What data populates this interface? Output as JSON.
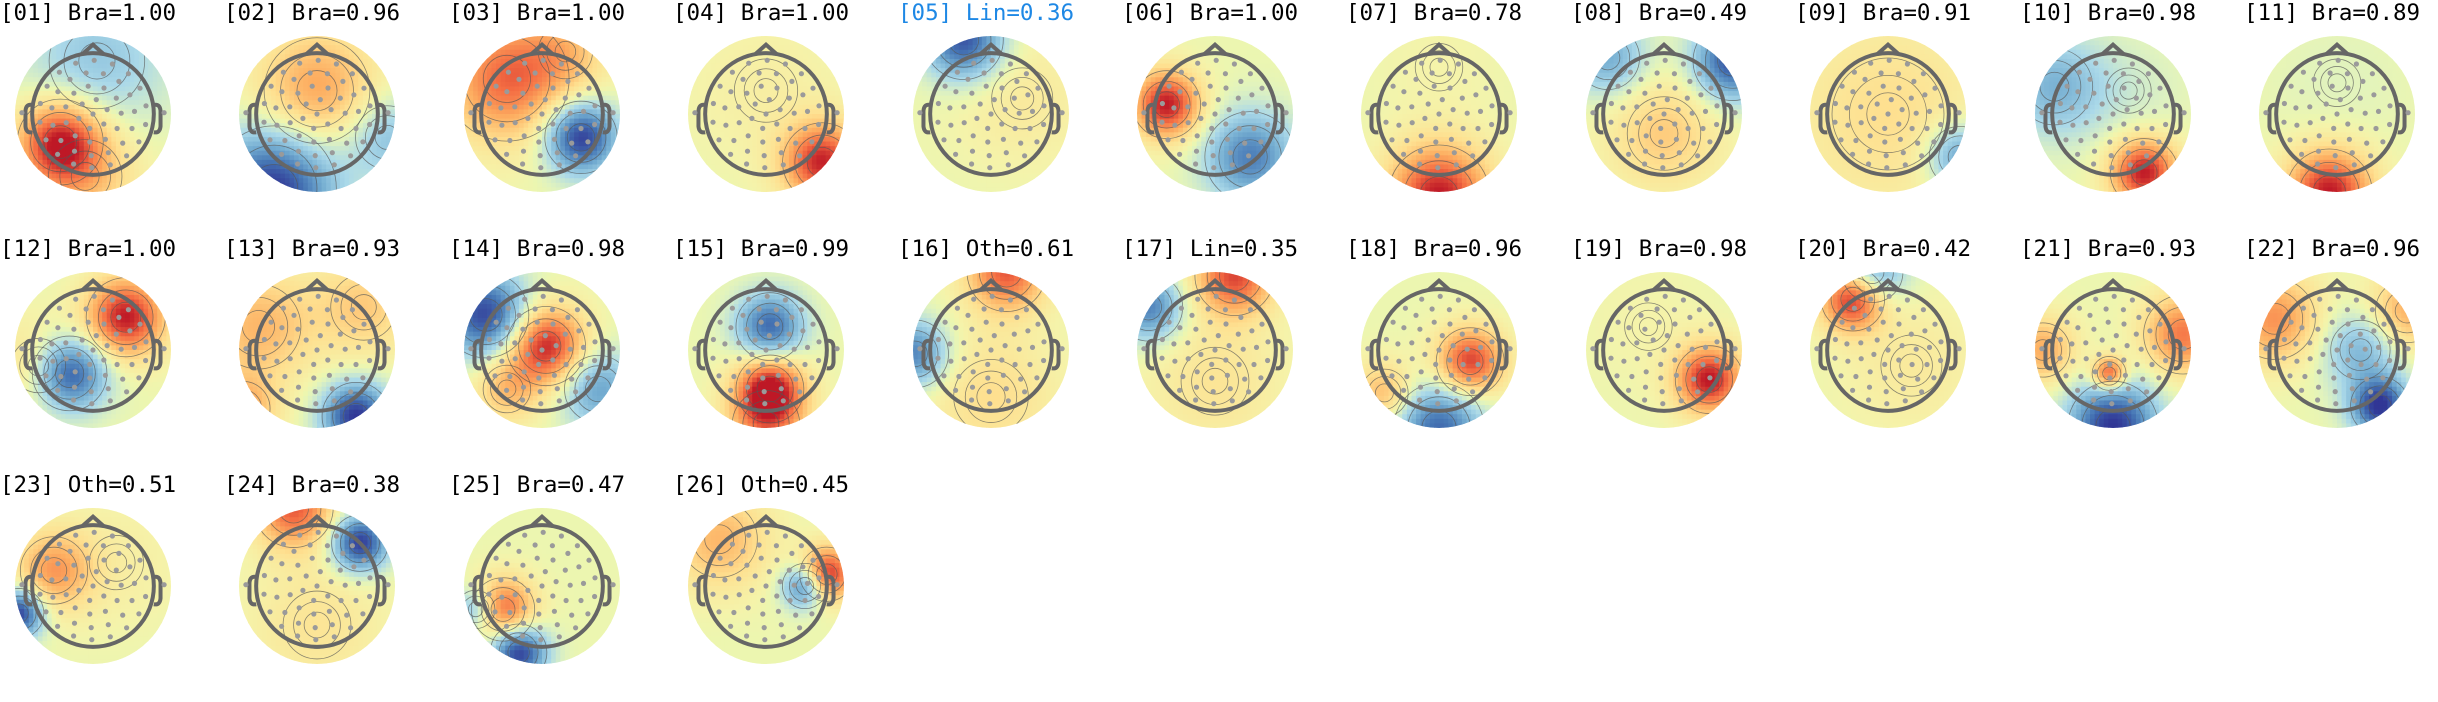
{
  "components": [
    {
      "label": "[01] Bra=1.00",
      "blobs": [
        [
          -0.42,
          -0.36,
          0.95,
          0.38
        ],
        [
          0.05,
          0.68,
          -0.35,
          0.65
        ],
        [
          -0.1,
          -0.8,
          0.35,
          0.5
        ]
      ]
    },
    {
      "label": "[02] Bra=0.96",
      "blobs": [
        [
          0.0,
          0.3,
          0.55,
          0.55
        ],
        [
          -0.55,
          -0.95,
          -1.0,
          0.55
        ],
        [
          0.9,
          -0.3,
          -0.4,
          0.4
        ]
      ]
    },
    {
      "label": "[03] Bra=1.00",
      "blobs": [
        [
          -0.45,
          0.45,
          0.75,
          0.55
        ],
        [
          0.5,
          -0.3,
          -1.0,
          0.32
        ],
        [
          0.3,
          0.8,
          0.3,
          0.4
        ]
      ]
    },
    {
      "label": "[04] Bra=1.00",
      "blobs": [
        [
          0.72,
          -0.62,
          0.95,
          0.35
        ],
        [
          0.0,
          0.3,
          0.1,
          0.7
        ]
      ]
    },
    {
      "label": "[05] Lin=0.36",
      "highlight": true,
      "blobs": [
        [
          -0.35,
          0.95,
          -0.9,
          0.35
        ],
        [
          0.4,
          0.2,
          0.15,
          0.6
        ]
      ]
    },
    {
      "label": "[06] Bra=1.00",
      "blobs": [
        [
          -0.62,
          0.12,
          1.0,
          0.3
        ],
        [
          0.45,
          -0.55,
          -0.7,
          0.4
        ]
      ]
    },
    {
      "label": "[07] Bra=0.78",
      "blobs": [
        [
          0.0,
          -1.05,
          1.0,
          0.45
        ],
        [
          0.0,
          0.6,
          0.05,
          0.6
        ]
      ]
    },
    {
      "label": "[08] Bra=0.49",
      "blobs": [
        [
          0.88,
          0.68,
          -0.9,
          0.35
        ],
        [
          -0.72,
          0.72,
          -0.5,
          0.35
        ],
        [
          0.0,
          -0.25,
          0.35,
          0.5
        ]
      ]
    },
    {
      "label": "[09] Bra=0.91",
      "blobs": [
        [
          0.0,
          0.0,
          0.25,
          0.9
        ],
        [
          0.92,
          -0.55,
          -0.6,
          0.3
        ]
      ]
    },
    {
      "label": "[10] Bra=0.98",
      "blobs": [
        [
          0.4,
          -0.75,
          1.0,
          0.3
        ],
        [
          -0.75,
          0.35,
          -0.45,
          0.45
        ],
        [
          0.2,
          0.3,
          -0.1,
          0.5
        ]
      ]
    },
    {
      "label": "[11] Bra=0.89",
      "blobs": [
        [
          -0.1,
          -1.0,
          1.0,
          0.38
        ],
        [
          0.0,
          0.4,
          -0.05,
          0.6
        ]
      ]
    },
    {
      "label": "[12] Bra=1.00",
      "blobs": [
        [
          0.42,
          0.42,
          1.0,
          0.35
        ],
        [
          -0.3,
          -0.3,
          -0.95,
          0.33
        ],
        [
          -0.7,
          -0.2,
          0.3,
          0.4
        ]
      ]
    },
    {
      "label": "[13] Bra=0.93",
      "blobs": [
        [
          0.5,
          -0.85,
          -1.0,
          0.3
        ],
        [
          -0.75,
          0.3,
          0.45,
          0.5
        ],
        [
          0.6,
          0.55,
          0.35,
          0.45
        ],
        [
          -0.95,
          -0.75,
          0.5,
          0.3
        ]
      ]
    },
    {
      "label": "[14] Bra=0.98",
      "blobs": [
        [
          0.05,
          0.05,
          1.0,
          0.35
        ],
        [
          -0.72,
          0.45,
          -0.95,
          0.38
        ],
        [
          0.72,
          -0.5,
          -0.55,
          0.35
        ],
        [
          -0.45,
          -0.5,
          0.4,
          0.3
        ]
      ]
    },
    {
      "label": "[15] Bra=0.99",
      "blobs": [
        [
          0.05,
          -0.5,
          1.0,
          0.3
        ],
        [
          0.05,
          0.3,
          -0.8,
          0.3
        ],
        [
          0.0,
          -0.95,
          0.55,
          0.35
        ]
      ]
    },
    {
      "label": "[16] Oth=0.61",
      "blobs": [
        [
          0.2,
          1.0,
          0.8,
          0.35
        ],
        [
          -0.98,
          -0.05,
          -0.7,
          0.3
        ],
        [
          0.0,
          -0.6,
          0.25,
          0.6
        ]
      ]
    },
    {
      "label": "[17] Lin=0.35",
      "blobs": [
        [
          0.25,
          0.95,
          0.85,
          0.35
        ],
        [
          -0.85,
          0.55,
          -0.7,
          0.3
        ],
        [
          0.0,
          -0.4,
          0.2,
          0.6
        ]
      ]
    },
    {
      "label": "[18] Bra=0.96",
      "blobs": [
        [
          0.4,
          -0.15,
          0.9,
          0.3
        ],
        [
          0.0,
          -1.0,
          -0.8,
          0.4
        ],
        [
          -0.7,
          -0.55,
          0.45,
          0.28
        ]
      ]
    },
    {
      "label": "[19] Bra=0.98",
      "blobs": [
        [
          0.58,
          -0.38,
          1.0,
          0.3
        ],
        [
          -0.2,
          0.3,
          0.05,
          0.6
        ]
      ]
    },
    {
      "label": "[20] Bra=0.42",
      "blobs": [
        [
          -0.45,
          0.65,
          1.0,
          0.28
        ],
        [
          -0.2,
          1.0,
          -0.6,
          0.3
        ],
        [
          0.3,
          -0.2,
          0.15,
          0.6
        ]
      ]
    },
    {
      "label": "[21] Bra=0.93",
      "blobs": [
        [
          0.0,
          -0.98,
          -1.0,
          0.4
        ],
        [
          -0.05,
          -0.3,
          0.9,
          0.15
        ],
        [
          0.9,
          0.2,
          0.7,
          0.35
        ],
        [
          -0.9,
          0.0,
          0.5,
          0.3
        ]
      ]
    },
    {
      "label": "[22] Bra=0.96",
      "blobs": [
        [
          0.55,
          -0.72,
          -1.0,
          0.26
        ],
        [
          0.3,
          0.0,
          -0.45,
          0.35
        ],
        [
          -0.8,
          0.4,
          0.6,
          0.4
        ],
        [
          0.9,
          0.5,
          0.5,
          0.35
        ]
      ]
    },
    {
      "label": "[23] Oth=0.51",
      "blobs": [
        [
          -0.95,
          -0.35,
          -1.0,
          0.22
        ],
        [
          -0.5,
          0.2,
          0.55,
          0.35
        ],
        [
          0.3,
          0.3,
          0.1,
          0.6
        ]
      ]
    },
    {
      "label": "[24] Bra=0.38",
      "blobs": [
        [
          0.55,
          0.55,
          -1.0,
          0.25
        ],
        [
          -0.3,
          1.0,
          0.8,
          0.35
        ],
        [
          0.0,
          -0.5,
          0.2,
          0.6
        ]
      ]
    },
    {
      "label": "[25] Bra=0.47",
      "blobs": [
        [
          -0.3,
          -0.85,
          -1.0,
          0.25
        ],
        [
          -0.5,
          -0.3,
          0.8,
          0.28
        ],
        [
          -0.85,
          -0.3,
          -0.55,
          0.2
        ]
      ]
    },
    {
      "label": "[26] Oth=0.45",
      "blobs": [
        [
          0.78,
          0.15,
          1.0,
          0.24
        ],
        [
          0.5,
          0.0,
          -0.8,
          0.2
        ],
        [
          -0.6,
          0.6,
          0.45,
          0.45
        ]
      ]
    }
  ]
}
